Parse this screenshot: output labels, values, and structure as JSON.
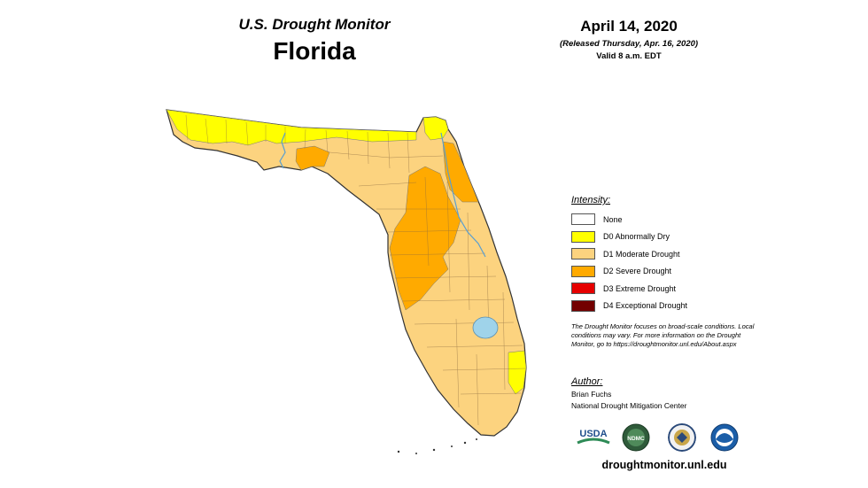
{
  "header": {
    "supertitle": "U.S. Drought Monitor",
    "title": "Florida",
    "date": "April 14, 2020",
    "released": "(Released Thursday, Apr. 16, 2020)",
    "valid": "Valid 8 a.m. EDT"
  },
  "legend": {
    "header": "Intensity:",
    "items": [
      {
        "label": "None",
        "color": "#ffffff"
      },
      {
        "label": "D0 Abnormally Dry",
        "color": "#ffff00"
      },
      {
        "label": "D1 Moderate Drought",
        "color": "#fcd37f"
      },
      {
        "label": "D2 Severe Drought",
        "color": "#ffaa00"
      },
      {
        "label": "D3 Extreme Drought",
        "color": "#e60000"
      },
      {
        "label": "D4 Exceptional Drought",
        "color": "#730000"
      }
    ]
  },
  "note": "The Drought Monitor focuses on broad-scale conditions. Local conditions may vary. For more information on the Drought Monitor, go to https://droughtmonitor.unl.edu/About.aspx",
  "author": {
    "header": "Author:",
    "name": "Brian Fuchs",
    "org": "National Drought Mitigation Center"
  },
  "logos": {
    "usda": "USDA",
    "ndmc": "NDMC",
    "items": [
      "usda-logo",
      "ndmc-logo",
      "doc-seal",
      "noaa-logo"
    ]
  },
  "url": "droughtmonitor.unl.edu",
  "map_colors": {
    "water": "#9fd3ea",
    "outline": "#333333",
    "county_lines": "#8a6a40"
  }
}
